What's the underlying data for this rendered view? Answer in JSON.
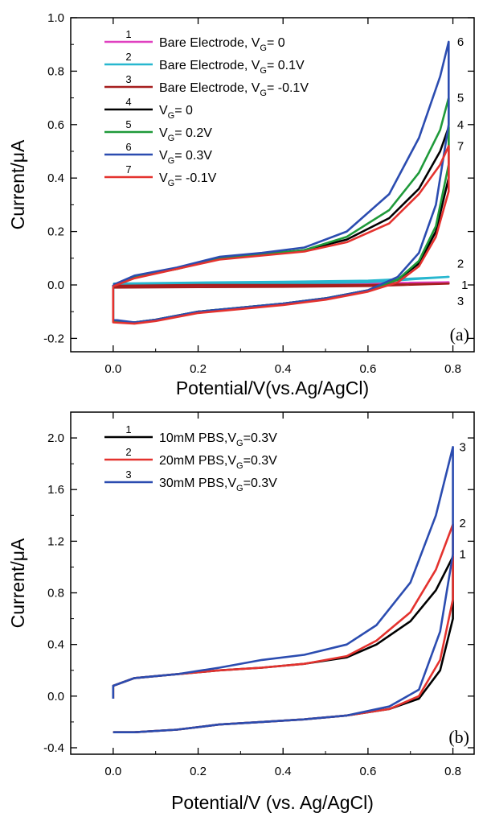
{
  "chart_data": [
    {
      "type": "line",
      "panel_label": "(a)",
      "xlabel": "Potential/V(vs.Ag/AgCl)",
      "ylabel": "Current/μA",
      "xlim": [
        -0.1,
        0.85
      ],
      "ylim": [
        -0.25,
        1.0
      ],
      "xticks": [
        "0.0",
        "0.2",
        "0.4",
        "0.6",
        "0.8"
      ],
      "xtick_values": [
        0,
        0.2,
        0.4,
        0.6,
        0.8
      ],
      "yticks": [
        "-0.2",
        "0.0",
        "0.2",
        "0.4",
        "0.6",
        "0.8",
        "1.0"
      ],
      "ytick_values": [
        -0.2,
        0,
        0.2,
        0.4,
        0.6,
        0.8,
        1.0
      ],
      "legend_position": "top-left",
      "series": [
        {
          "id": "1",
          "name": "Bare Electrode, V",
          "sub": "G",
          "suffix": "= 0",
          "color": "#e040c0",
          "points": [
            [
              0.0,
              0.0
            ],
            [
              0.2,
              0.003
            ],
            [
              0.4,
              0.005
            ],
            [
              0.6,
              0.006
            ],
            [
              0.79,
              0.01
            ],
            [
              0.6,
              0.0
            ],
            [
              0.4,
              -0.003
            ],
            [
              0.2,
              -0.004
            ],
            [
              0.0,
              -0.005
            ]
          ]
        },
        {
          "id": "2",
          "name": "Bare Electrode, V",
          "sub": "G",
          "suffix": "= 0.1V",
          "color": "#27b7cf",
          "points": [
            [
              0.0,
              0.005
            ],
            [
              0.2,
              0.009
            ],
            [
              0.4,
              0.012
            ],
            [
              0.6,
              0.016
            ],
            [
              0.79,
              0.03
            ],
            [
              0.6,
              0.01
            ],
            [
              0.4,
              0.005
            ],
            [
              0.2,
              0.002
            ],
            [
              0.0,
              0.0
            ]
          ]
        },
        {
          "id": "3",
          "name": "Bare Electrode, V",
          "sub": "G",
          "suffix": "= -0.1V",
          "color": "#a61e1e",
          "points": [
            [
              0.0,
              -0.003
            ],
            [
              0.2,
              0.0
            ],
            [
              0.4,
              0.0
            ],
            [
              0.6,
              0.0
            ],
            [
              0.79,
              0.005
            ],
            [
              0.6,
              -0.004
            ],
            [
              0.4,
              -0.007
            ],
            [
              0.2,
              -0.008
            ],
            [
              0.0,
              -0.01
            ]
          ]
        },
        {
          "id": "4",
          "name": "V",
          "sub": "G",
          "suffix": "= 0",
          "color": "#000000",
          "points": [
            [
              0.0,
              0.0
            ],
            [
              0.05,
              0.03
            ],
            [
              0.15,
              0.06
            ],
            [
              0.25,
              0.1
            ],
            [
              0.35,
              0.115
            ],
            [
              0.45,
              0.13
            ],
            [
              0.55,
              0.17
            ],
            [
              0.65,
              0.25
            ],
            [
              0.72,
              0.36
            ],
            [
              0.77,
              0.5
            ],
            [
              0.79,
              0.59
            ],
            [
              0.79,
              0.4
            ],
            [
              0.76,
              0.2
            ],
            [
              0.72,
              0.08
            ],
            [
              0.67,
              0.02
            ],
            [
              0.6,
              -0.02
            ],
            [
              0.5,
              -0.05
            ],
            [
              0.4,
              -0.07
            ],
            [
              0.3,
              -0.085
            ],
            [
              0.2,
              -0.1
            ],
            [
              0.1,
              -0.13
            ],
            [
              0.05,
              -0.14
            ],
            [
              0.0,
              -0.135
            ],
            [
              0.0,
              0.0
            ]
          ]
        },
        {
          "id": "5",
          "name": "V",
          "sub": "G",
          "suffix": "= 0.2V",
          "color": "#1f9a3a",
          "points": [
            [
              0.0,
              0.0
            ],
            [
              0.05,
              0.03
            ],
            [
              0.15,
              0.06
            ],
            [
              0.25,
              0.1
            ],
            [
              0.35,
              0.115
            ],
            [
              0.45,
              0.13
            ],
            [
              0.55,
              0.18
            ],
            [
              0.65,
              0.28
            ],
            [
              0.72,
              0.42
            ],
            [
              0.77,
              0.58
            ],
            [
              0.79,
              0.7
            ],
            [
              0.79,
              0.45
            ],
            [
              0.76,
              0.22
            ],
            [
              0.72,
              0.09
            ],
            [
              0.67,
              0.02
            ],
            [
              0.6,
              -0.02
            ],
            [
              0.5,
              -0.05
            ],
            [
              0.4,
              -0.07
            ],
            [
              0.3,
              -0.085
            ],
            [
              0.2,
              -0.1
            ],
            [
              0.1,
              -0.13
            ],
            [
              0.05,
              -0.14
            ],
            [
              0.0,
              -0.135
            ],
            [
              0.0,
              0.0
            ]
          ]
        },
        {
          "id": "6",
          "name": "V",
          "sub": "G",
          "suffix": "= 0.3V",
          "color": "#2b4cb0",
          "points": [
            [
              0.0,
              0.0
            ],
            [
              0.05,
              0.035
            ],
            [
              0.15,
              0.065
            ],
            [
              0.25,
              0.105
            ],
            [
              0.35,
              0.12
            ],
            [
              0.45,
              0.14
            ],
            [
              0.55,
              0.2
            ],
            [
              0.65,
              0.34
            ],
            [
              0.72,
              0.55
            ],
            [
              0.77,
              0.78
            ],
            [
              0.79,
              0.91
            ],
            [
              0.79,
              0.6
            ],
            [
              0.76,
              0.3
            ],
            [
              0.72,
              0.12
            ],
            [
              0.67,
              0.03
            ],
            [
              0.6,
              -0.02
            ],
            [
              0.5,
              -0.05
            ],
            [
              0.4,
              -0.07
            ],
            [
              0.3,
              -0.085
            ],
            [
              0.2,
              -0.1
            ],
            [
              0.1,
              -0.13
            ],
            [
              0.05,
              -0.14
            ],
            [
              0.0,
              -0.13
            ],
            [
              0.0,
              0.0
            ]
          ]
        },
        {
          "id": "7",
          "name": "V",
          "sub": "G",
          "suffix": "= -0.1V",
          "color": "#e4322e",
          "points": [
            [
              0.0,
              -0.005
            ],
            [
              0.05,
              0.025
            ],
            [
              0.15,
              0.06
            ],
            [
              0.25,
              0.095
            ],
            [
              0.35,
              0.11
            ],
            [
              0.45,
              0.125
            ],
            [
              0.55,
              0.16
            ],
            [
              0.65,
              0.23
            ],
            [
              0.72,
              0.34
            ],
            [
              0.77,
              0.45
            ],
            [
              0.79,
              0.52
            ],
            [
              0.79,
              0.35
            ],
            [
              0.76,
              0.18
            ],
            [
              0.72,
              0.07
            ],
            [
              0.67,
              0.01
            ],
            [
              0.6,
              -0.025
            ],
            [
              0.5,
              -0.055
            ],
            [
              0.4,
              -0.075
            ],
            [
              0.3,
              -0.09
            ],
            [
              0.2,
              -0.105
            ],
            [
              0.1,
              -0.135
            ],
            [
              0.05,
              -0.145
            ],
            [
              0.0,
              -0.14
            ],
            [
              0.0,
              -0.005
            ]
          ]
        }
      ],
      "end_labels": [
        {
          "text": "6",
          "x": 0.81,
          "y": 0.91
        },
        {
          "text": "5",
          "x": 0.81,
          "y": 0.7
        },
        {
          "text": "4",
          "x": 0.81,
          "y": 0.6
        },
        {
          "text": "7",
          "x": 0.81,
          "y": 0.52
        },
        {
          "text": "2",
          "x": 0.81,
          "y": 0.08
        },
        {
          "text": "1",
          "x": 0.82,
          "y": 0.0
        },
        {
          "text": "3",
          "x": 0.81,
          "y": -0.06
        }
      ]
    },
    {
      "type": "line",
      "panel_label": "(b)",
      "xlabel": "Potential/V (vs. Ag/AgCl)",
      "ylabel": "Current/μA",
      "xlim": [
        -0.1,
        0.85
      ],
      "ylim": [
        -0.45,
        2.2
      ],
      "xticks": [
        "0.0",
        "0.2",
        "0.4",
        "0.6",
        "0.8"
      ],
      "xtick_values": [
        0,
        0.2,
        0.4,
        0.6,
        0.8
      ],
      "yticks": [
        "-0.4",
        "0.0",
        "0.4",
        "0.8",
        "1.2",
        "1.6",
        "2.0"
      ],
      "ytick_values": [
        -0.4,
        0,
        0.4,
        0.8,
        1.2,
        1.6,
        2.0
      ],
      "legend_position": "top-left",
      "series": [
        {
          "id": "1",
          "name": "10mM PBS,V",
          "sub": "G",
          "suffix": "=0.3V",
          "color": "#000000",
          "points": [
            [
              0.0,
              -0.02
            ],
            [
              0.0,
              0.08
            ],
            [
              0.05,
              0.14
            ],
            [
              0.15,
              0.17
            ],
            [
              0.25,
              0.2
            ],
            [
              0.35,
              0.22
            ],
            [
              0.45,
              0.25
            ],
            [
              0.55,
              0.3
            ],
            [
              0.62,
              0.4
            ],
            [
              0.7,
              0.58
            ],
            [
              0.76,
              0.82
            ],
            [
              0.8,
              1.08
            ],
            [
              0.8,
              0.6
            ],
            [
              0.77,
              0.2
            ],
            [
              0.72,
              -0.02
            ],
            [
              0.65,
              -0.1
            ],
            [
              0.55,
              -0.15
            ],
            [
              0.45,
              -0.18
            ],
            [
              0.35,
              -0.2
            ],
            [
              0.25,
              -0.22
            ],
            [
              0.15,
              -0.26
            ],
            [
              0.05,
              -0.28
            ],
            [
              0.0,
              -0.28
            ]
          ]
        },
        {
          "id": "2",
          "name": "20mM PBS,V",
          "sub": "G",
          "suffix": "=0.3V",
          "color": "#e4322e",
          "points": [
            [
              0.0,
              -0.02
            ],
            [
              0.0,
              0.08
            ],
            [
              0.05,
              0.14
            ],
            [
              0.15,
              0.17
            ],
            [
              0.25,
              0.2
            ],
            [
              0.35,
              0.22
            ],
            [
              0.45,
              0.25
            ],
            [
              0.55,
              0.31
            ],
            [
              0.62,
              0.43
            ],
            [
              0.7,
              0.65
            ],
            [
              0.76,
              0.98
            ],
            [
              0.8,
              1.33
            ],
            [
              0.8,
              0.75
            ],
            [
              0.77,
              0.28
            ],
            [
              0.72,
              0.0
            ],
            [
              0.65,
              -0.1
            ],
            [
              0.55,
              -0.15
            ],
            [
              0.45,
              -0.18
            ],
            [
              0.35,
              -0.2
            ],
            [
              0.25,
              -0.22
            ],
            [
              0.15,
              -0.26
            ],
            [
              0.05,
              -0.28
            ],
            [
              0.0,
              -0.28
            ]
          ]
        },
        {
          "id": "3",
          "name": "30mM PBS,V",
          "sub": "G",
          "suffix": "=0.3V",
          "color": "#2b4cb0",
          "points": [
            [
              0.0,
              -0.02
            ],
            [
              0.0,
              0.08
            ],
            [
              0.05,
              0.14
            ],
            [
              0.15,
              0.17
            ],
            [
              0.25,
              0.22
            ],
            [
              0.35,
              0.28
            ],
            [
              0.45,
              0.32
            ],
            [
              0.55,
              0.4
            ],
            [
              0.62,
              0.55
            ],
            [
              0.7,
              0.88
            ],
            [
              0.76,
              1.4
            ],
            [
              0.8,
              1.93
            ],
            [
              0.8,
              1.1
            ],
            [
              0.77,
              0.5
            ],
            [
              0.72,
              0.05
            ],
            [
              0.65,
              -0.08
            ],
            [
              0.55,
              -0.15
            ],
            [
              0.45,
              -0.18
            ],
            [
              0.35,
              -0.2
            ],
            [
              0.25,
              -0.22
            ],
            [
              0.15,
              -0.26
            ],
            [
              0.05,
              -0.28
            ],
            [
              0.0,
              -0.28
            ]
          ]
        }
      ],
      "end_labels": [
        {
          "text": "3",
          "x": 0.815,
          "y": 1.93
        },
        {
          "text": "2",
          "x": 0.815,
          "y": 1.34
        },
        {
          "text": "1",
          "x": 0.815,
          "y": 1.1
        }
      ]
    }
  ]
}
